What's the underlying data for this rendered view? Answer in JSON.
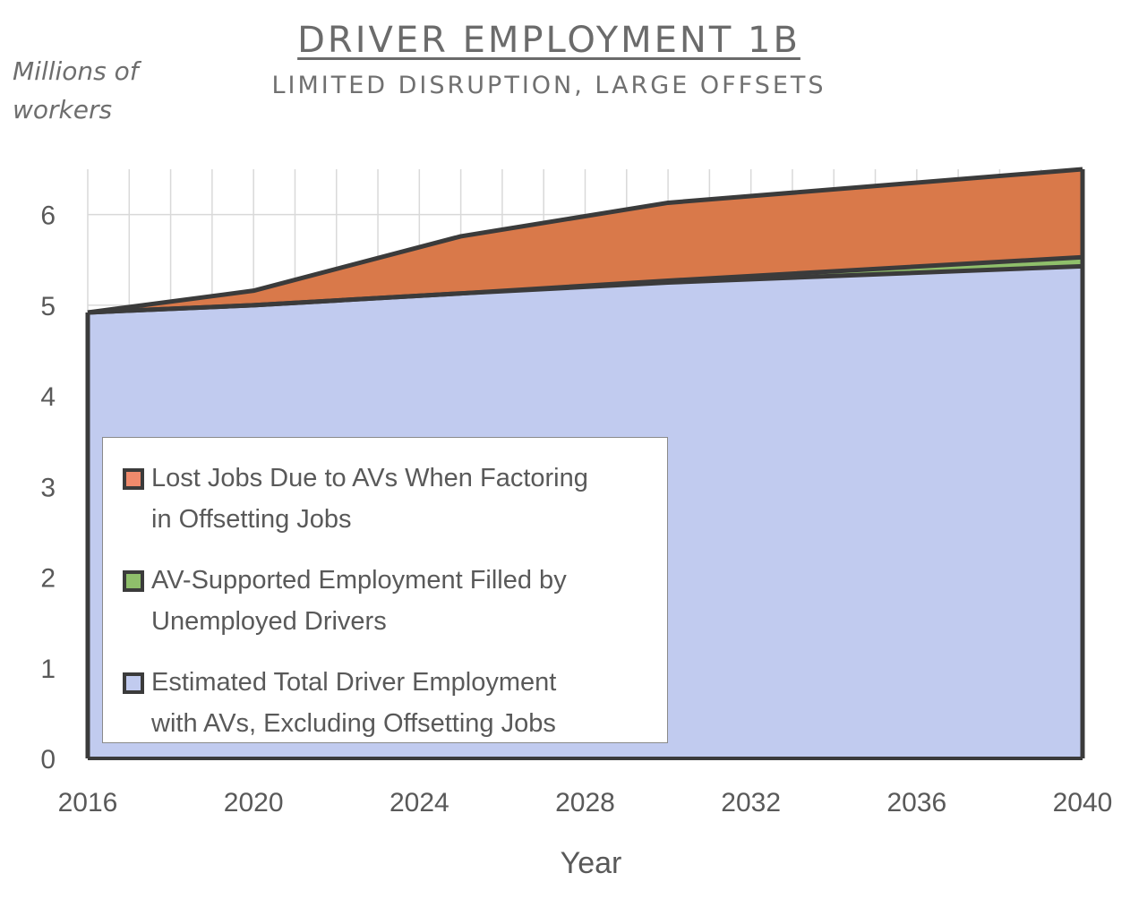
{
  "colors": {
    "lost_jobs": "#d9794a",
    "lost_jobs_swatch": "#f08a6c",
    "av_supported": "#8fbf6b",
    "total_employment": "#c1cbef",
    "outline": "#3b3b3b",
    "grid": "#d9d9d9"
  },
  "chart_data": {
    "type": "area",
    "title": "DRIVER EMPLOYMENT 1B",
    "subtitle": "LIMITED DISRUPTION, LARGE OFFSETS",
    "xlabel": "Year",
    "ylabel": "Millions of workers",
    "xlim": [
      2016,
      2040
    ],
    "ylim": [
      0,
      6.5
    ],
    "x_ticks": [
      "2016",
      "2020",
      "2024",
      "2028",
      "2032",
      "2036",
      "2040"
    ],
    "y_ticks": [
      "0",
      "1",
      "2",
      "3",
      "4",
      "5",
      "6"
    ],
    "grid": true,
    "stacked": true,
    "x": [
      2016,
      2020,
      2025,
      2030,
      2040
    ],
    "series": [
      {
        "name": "Estimated Total Driver Employment with AVs, Excluding Offsetting Jobs",
        "values": [
          4.92,
          5.0,
          5.13,
          5.25,
          5.43
        ]
      },
      {
        "name": "AV-Supported Employment Filled by Unemployed Drivers",
        "values": [
          0.0,
          0.0,
          0.0,
          0.02,
          0.1
        ]
      },
      {
        "name": "Lost Jobs Due to AVs When Factoring in Offsetting Jobs",
        "values": [
          0.0,
          0.16,
          0.63,
          0.86,
          0.97
        ]
      }
    ],
    "legend": {
      "placement": "bottom-left-inside",
      "entries": [
        {
          "line1": "Lost Jobs Due to AVs When Factoring",
          "line2": "in Offsetting Jobs"
        },
        {
          "line1": "AV-Supported Employment Filled by",
          "line2": "Unemployed Drivers"
        },
        {
          "line1": "Estimated Total Driver Employment",
          "line2": "with AVs, Excluding Offsetting Jobs"
        }
      ]
    }
  }
}
